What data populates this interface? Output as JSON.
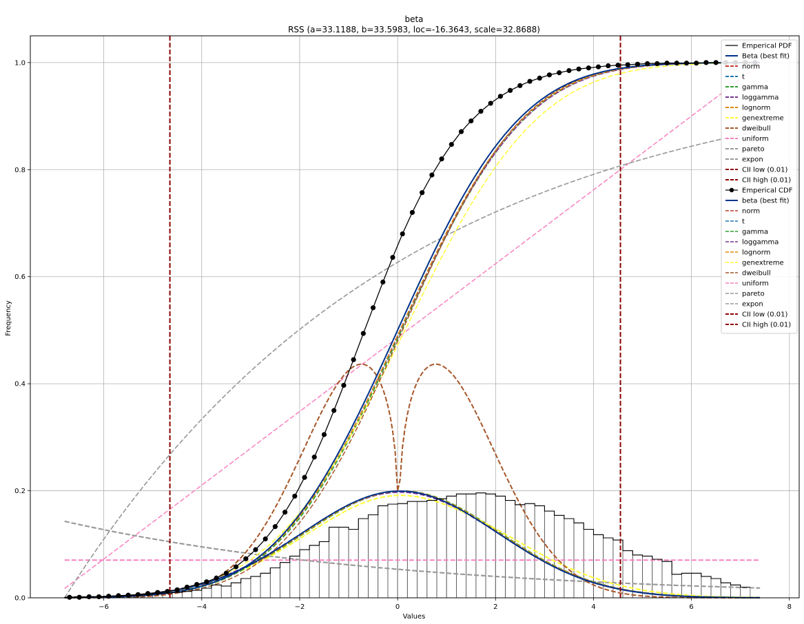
{
  "chart_data": {
    "type": "line",
    "title": "beta",
    "subtitle": "RSS (a=33.1188, b=33.5983, loc=-16.3643, scale=32.8688)",
    "xlabel": "Values",
    "ylabel": "Frequency",
    "xlim": [
      -7.5,
      8.2
    ],
    "ylim": [
      0,
      1.05
    ],
    "xticks": [
      -6,
      -4,
      -2,
      0,
      2,
      4,
      6,
      8
    ],
    "yticks": [
      0.0,
      0.2,
      0.4,
      0.6,
      0.8,
      1.0
    ],
    "grid": true,
    "legend_position": "top-right",
    "fit_params": {
      "a": 33.1188,
      "b": 33.5983,
      "loc": -16.3643,
      "scale": 32.8688
    },
    "cii_low": -4.65,
    "cii_high": 4.55,
    "histogram": {
      "bin_start": -6.8,
      "bin_width": 0.2,
      "values": [
        0.001,
        0.002,
        0.002,
        0.002,
        0.003,
        0.003,
        0.004,
        0.005,
        0.006,
        0.008,
        0.009,
        0.01,
        0.012,
        0.014,
        0.018,
        0.024,
        0.022,
        0.028,
        0.036,
        0.04,
        0.046,
        0.056,
        0.066,
        0.078,
        0.09,
        0.098,
        0.105,
        0.132,
        0.132,
        0.128,
        0.148,
        0.155,
        0.172,
        0.175,
        0.176,
        0.18,
        0.18,
        0.182,
        0.185,
        0.19,
        0.194,
        0.194,
        0.196,
        0.194,
        0.19,
        0.182,
        0.174,
        0.176,
        0.172,
        0.162,
        0.154,
        0.148,
        0.14,
        0.128,
        0.118,
        0.112,
        0.108,
        0.088,
        0.08,
        0.078,
        0.072,
        0.068,
        0.044,
        0.046,
        0.046,
        0.04,
        0.036,
        0.028,
        0.024,
        0.02
      ]
    },
    "empirical_cdf": {
      "x": [
        -6.7,
        -6.5,
        -6.3,
        -6.1,
        -5.9,
        -5.7,
        -5.5,
        -5.3,
        -5.1,
        -4.9,
        -4.7,
        -4.5,
        -4.3,
        -4.1,
        -3.9,
        -3.7,
        -3.5,
        -3.3,
        -3.1,
        -2.9,
        -2.7,
        -2.5,
        -2.3,
        -2.1,
        -1.9,
        -1.7,
        -1.5,
        -1.3,
        -1.1,
        -0.9,
        -0.7,
        -0.5,
        -0.3,
        -0.1,
        0.1,
        0.3,
        0.5,
        0.7,
        0.9,
        1.1,
        1.3,
        1.5,
        1.7,
        1.9,
        2.1,
        2.3,
        2.5,
        2.7,
        2.9,
        3.1,
        3.3,
        3.5,
        3.7,
        3.9,
        4.1,
        4.3,
        4.5,
        4.7,
        4.9,
        5.1,
        5.3,
        5.5,
        5.7,
        5.9,
        6.1,
        6.3,
        6.5,
        6.7,
        6.9,
        7.1,
        7.3
      ],
      "y": [
        0.001,
        0.001,
        0.002,
        0.002,
        0.003,
        0.004,
        0.005,
        0.006,
        0.008,
        0.01,
        0.012,
        0.015,
        0.02,
        0.025,
        0.03,
        0.037,
        0.046,
        0.058,
        0.073,
        0.09,
        0.11,
        0.133,
        0.16,
        0.19,
        0.225,
        0.263,
        0.305,
        0.35,
        0.397,
        0.445,
        0.494,
        0.542,
        0.59,
        0.636,
        0.68,
        0.72,
        0.757,
        0.79,
        0.82,
        0.847,
        0.871,
        0.891,
        0.909,
        0.924,
        0.937,
        0.948,
        0.957,
        0.965,
        0.971,
        0.977,
        0.981,
        0.985,
        0.988,
        0.99,
        0.992,
        0.994,
        0.995,
        0.996,
        0.997,
        0.998,
        0.998,
        0.999,
        0.999,
        0.999,
        0.999,
        1.0,
        1.0,
        1.0,
        1.0,
        1.0,
        1.0
      ]
    },
    "series": [
      {
        "name": "Emperical PDF",
        "kind": "step",
        "color": "#000000",
        "dash": "solid",
        "width": 1.2,
        "marker": false
      },
      {
        "name": "Beta (best fit)",
        "kind": "pdf",
        "dist": "beta",
        "color": "#00338a",
        "dash": "solid",
        "width": 2,
        "marker": false
      },
      {
        "name": "norm",
        "kind": "pdf",
        "dist": "norm",
        "color": "#c0392b",
        "dash": "dashed",
        "width": 2,
        "marker": false
      },
      {
        "name": "t",
        "kind": "pdf",
        "dist": "t",
        "color": "#1f77b4",
        "dash": "dashed",
        "width": 2,
        "marker": false
      },
      {
        "name": "gamma",
        "kind": "pdf",
        "dist": "gamma",
        "color": "#2ca02c",
        "dash": "dashed",
        "width": 2,
        "marker": false
      },
      {
        "name": "loggamma",
        "kind": "pdf",
        "dist": "loggamma",
        "color": "#7b3294",
        "dash": "dashed",
        "width": 2,
        "marker": false
      },
      {
        "name": "lognorm",
        "kind": "pdf",
        "dist": "lognorm",
        "color": "#e08a00",
        "dash": "dashed",
        "width": 2,
        "marker": false
      },
      {
        "name": "genextreme",
        "kind": "pdf",
        "dist": "genextreme",
        "color": "#ffff33",
        "dash": "dashed",
        "width": 2,
        "marker": false
      },
      {
        "name": "dweibull",
        "kind": "pdf",
        "dist": "dweibull",
        "color": "#a65628",
        "dash": "dashed",
        "width": 2,
        "marker": false
      },
      {
        "name": "uniform",
        "kind": "pdf",
        "dist": "uniform",
        "color": "#f781bf",
        "dash": "dashed",
        "width": 2,
        "marker": false
      },
      {
        "name": "pareto",
        "kind": "pdf",
        "dist": "pareto",
        "color": "#999999",
        "dash": "dashed",
        "width": 2,
        "marker": false
      },
      {
        "name": "expon",
        "kind": "pdf",
        "dist": "expon",
        "color": "#999999",
        "dash": "dashed",
        "width": 2,
        "marker": false
      },
      {
        "name": "CII low (0.01)",
        "kind": "vline",
        "ref": "cii_low",
        "color": "#8b0000",
        "dash": "dashed",
        "width": 2,
        "marker": false
      },
      {
        "name": "CII high (0.01)",
        "kind": "vline",
        "ref": "cii_high",
        "color": "#8b0000",
        "dash": "dashed",
        "width": 2,
        "marker": false
      },
      {
        "name": "Emperical CDF",
        "kind": "cdf_points",
        "color": "#000000",
        "dash": "solid",
        "width": 1.2,
        "marker": true
      },
      {
        "name": "beta (best fit)",
        "kind": "cdf",
        "dist": "beta",
        "color": "#00338a",
        "dash": "solid",
        "width": 2,
        "marker": false
      },
      {
        "name": "norm",
        "kind": "cdf",
        "dist": "norm",
        "color": "#c0392b",
        "dash": "dashed",
        "width": 1.5,
        "marker": false
      },
      {
        "name": "t",
        "kind": "cdf",
        "dist": "t",
        "color": "#1f77b4",
        "dash": "dashed",
        "width": 1.5,
        "marker": false
      },
      {
        "name": "gamma",
        "kind": "cdf",
        "dist": "gamma",
        "color": "#2ca02c",
        "dash": "dashed",
        "width": 1.5,
        "marker": false
      },
      {
        "name": "loggamma",
        "kind": "cdf",
        "dist": "loggamma",
        "color": "#7b3294",
        "dash": "dashed",
        "width": 1.5,
        "marker": false
      },
      {
        "name": "lognorm",
        "kind": "cdf",
        "dist": "lognorm",
        "color": "#e08a00",
        "dash": "dashed",
        "width": 1.5,
        "marker": false
      },
      {
        "name": "genextreme",
        "kind": "cdf",
        "dist": "genextreme",
        "color": "#ffff33",
        "dash": "dashed",
        "width": 1.5,
        "marker": false
      },
      {
        "name": "dweibull",
        "kind": "cdf",
        "dist": "dweibull",
        "color": "#a65628",
        "dash": "dashed",
        "width": 1.5,
        "marker": false
      },
      {
        "name": "uniform",
        "kind": "cdf",
        "dist": "uniform",
        "color": "#f781bf",
        "dash": "dashed",
        "width": 1.5,
        "marker": false
      },
      {
        "name": "pareto",
        "kind": "cdf",
        "dist": "pareto",
        "color": "#999999",
        "dash": "dashed",
        "width": 1.5,
        "marker": false
      },
      {
        "name": "expon",
        "kind": "cdf",
        "dist": "expon",
        "color": "#999999",
        "dash": "dashed",
        "width": 1.5,
        "marker": false
      },
      {
        "name": "CII low (0.01)",
        "kind": "legend_only",
        "color": "#8b0000",
        "dash": "dashed",
        "width": 2,
        "marker": false
      },
      {
        "name": "CII high (0.01)",
        "kind": "legend_only",
        "color": "#8b0000",
        "dash": "dashed",
        "width": 2,
        "marker": false
      }
    ]
  }
}
